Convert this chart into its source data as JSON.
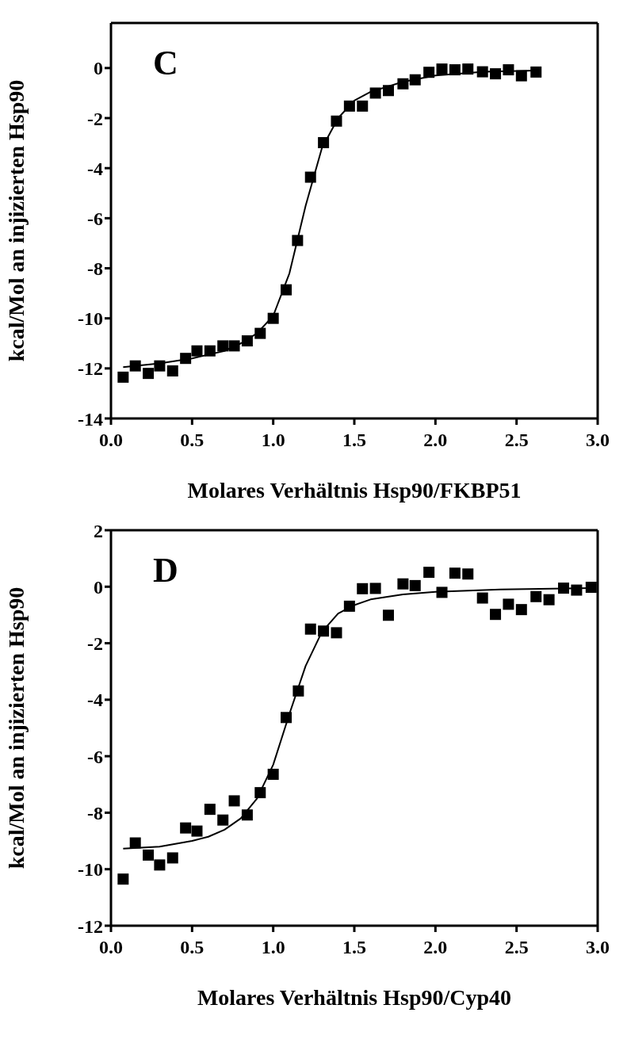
{
  "chart_data": [
    {
      "type": "scatter",
      "xlabel": "Molares Verhältnis Hsp90/FKBP51",
      "ylabel": "kcal/Mol an injizierten Hsp90",
      "annotations": [
        "C"
      ],
      "xlim": [
        0,
        3
      ],
      "xticks": [
        {
          "value": 0,
          "label": "0.0"
        },
        0.5,
        {
          "value": 1,
          "label": "1.0"
        },
        1.5,
        {
          "value": 2,
          "label": "2.0"
        },
        2.5,
        {
          "value": 3,
          "label": "3.0"
        }
      ],
      "ylim": [
        -14,
        1.8
      ],
      "yticks": [
        -14,
        -12,
        -10,
        -8,
        -6,
        -4,
        -2,
        0
      ],
      "series": [
        {
          "marker": "square",
          "color": "#000000",
          "x": [
            0.075,
            0.15,
            0.23,
            0.3,
            0.38,
            0.46,
            0.53,
            0.61,
            0.69,
            0.76,
            0.84,
            0.92,
            1.0,
            1.08,
            1.15,
            1.23,
            1.31,
            1.39,
            1.47,
            1.55,
            1.63,
            1.71,
            1.8,
            1.875,
            1.96,
            2.04,
            2.12,
            2.2,
            2.29,
            2.37,
            2.45,
            2.53,
            2.62
          ],
          "values": [
            -12.35,
            -11.9,
            -12.2,
            -11.9,
            -12.1,
            -11.6,
            -11.3,
            -11.3,
            -11.1,
            -11.1,
            -10.9,
            -10.6,
            -10.0,
            -8.86,
            -6.89,
            -4.36,
            -2.98,
            -2.12,
            -1.52,
            -1.52,
            -1.0,
            -0.9,
            -0.63,
            -0.47,
            -0.17,
            -0.04,
            -0.07,
            -0.04,
            -0.15,
            -0.23,
            -0.07,
            -0.31,
            -0.16
          ]
        },
        {
          "type": "line",
          "marker": "none",
          "line_style": "solid",
          "color": "#000000",
          "x": [
            0.075,
            0.3,
            0.5,
            0.7,
            0.8,
            0.9,
            1.0,
            1.1,
            1.2,
            1.3,
            1.4,
            1.5,
            1.6,
            1.8,
            2.0,
            2.3,
            2.62
          ],
          "values": [
            -11.95,
            -11.8,
            -11.6,
            -11.3,
            -11.0,
            -10.6,
            -9.9,
            -8.2,
            -5.5,
            -3.2,
            -2.0,
            -1.3,
            -0.95,
            -0.55,
            -0.3,
            -0.15,
            -0.1
          ]
        }
      ]
    },
    {
      "type": "scatter",
      "xlabel": "Molares Verhältnis Hsp90/Cyp40",
      "ylabel": "kcal/Mol an injizierten Hsp90",
      "annotations": [
        "D"
      ],
      "xlim": [
        0,
        3
      ],
      "xticks": [
        {
          "value": 0,
          "label": "0.0"
        },
        0.5,
        {
          "value": 1,
          "label": "1.0"
        },
        1.5,
        {
          "value": 2,
          "label": "2.0"
        },
        2.5,
        {
          "value": 3,
          "label": "3.0"
        }
      ],
      "ylim": [
        -12,
        2
      ],
      "yticks": [
        -12,
        -10,
        -8,
        -6,
        -4,
        -2,
        0,
        2
      ],
      "series": [
        {
          "marker": "square",
          "color": "#000000",
          "x": [
            0.075,
            0.15,
            0.23,
            0.3,
            0.38,
            0.46,
            0.53,
            0.61,
            0.69,
            0.76,
            0.84,
            0.92,
            1.0,
            1.08,
            1.155,
            1.23,
            1.31,
            1.39,
            1.47,
            1.55,
            1.63,
            1.71,
            1.8,
            1.875,
            1.96,
            2.04,
            2.12,
            2.2,
            2.29,
            2.37,
            2.45,
            2.53,
            2.62,
            2.7,
            2.79,
            2.87,
            2.96
          ],
          "values": [
            -10.35,
            -9.07,
            -9.5,
            -9.85,
            -9.6,
            -8.54,
            -8.65,
            -7.88,
            -8.26,
            -7.58,
            -8.08,
            -7.29,
            -6.64,
            -4.63,
            -3.69,
            -1.5,
            -1.57,
            -1.63,
            -0.69,
            -0.07,
            -0.06,
            -1.01,
            0.1,
            0.04,
            0.51,
            -0.2,
            0.48,
            0.45,
            -0.4,
            -0.98,
            -0.62,
            -0.81,
            -0.35,
            -0.46,
            -0.05,
            -0.12,
            -0.02
          ]
        },
        {
          "type": "line",
          "marker": "none",
          "line_style": "solid",
          "color": "#000000",
          "x": [
            0.075,
            0.3,
            0.5,
            0.6,
            0.7,
            0.8,
            0.9,
            1.0,
            1.1,
            1.2,
            1.3,
            1.4,
            1.5,
            1.6,
            1.8,
            2.0,
            2.4,
            2.96
          ],
          "values": [
            -9.27,
            -9.2,
            -9.0,
            -8.85,
            -8.6,
            -8.2,
            -7.5,
            -6.3,
            -4.5,
            -2.8,
            -1.6,
            -0.95,
            -0.65,
            -0.45,
            -0.27,
            -0.18,
            -0.1,
            -0.05
          ]
        }
      ]
    }
  ]
}
